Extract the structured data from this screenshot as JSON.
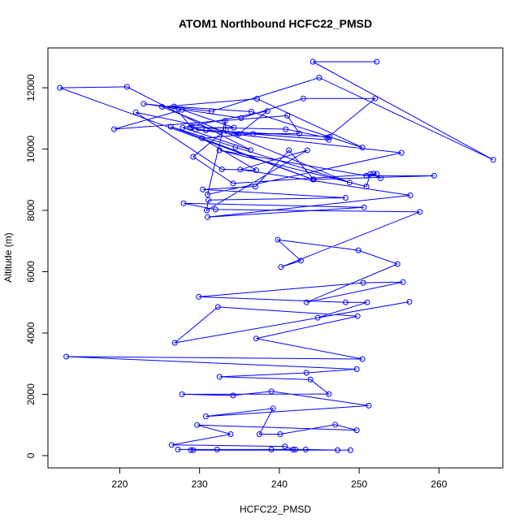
{
  "chart_data": {
    "type": "scatter",
    "title": "ATOM1 Northbound HCFC22_PMSD",
    "xlabel": "HCFC22_PMSD",
    "ylabel": "Altitude (m)",
    "xlim": [
      211,
      268
    ],
    "ylim": [
      -400,
      13300
    ],
    "xticks": [
      220,
      230,
      240,
      250,
      260
    ],
    "yticks": [
      0,
      2000,
      4000,
      6000,
      8000,
      10000,
      12000
    ],
    "grid": false,
    "legend": "none",
    "line_color": "#0000ff",
    "marker": "open-circle",
    "series": [
      {
        "x": [
          252.2,
          244.2,
          266.8,
          245.0,
          231.5,
          223.0,
          235.2,
          243.0,
          252.0,
          246.0,
          240.8,
          229.0,
          226.8,
          236.5,
          250.4,
          237.2,
          225.3,
          248.8,
          234.5,
          226.4,
          244.2,
          212.5,
          220.9,
          236.4,
          227.9,
          238.5,
          234.9,
          222.0,
          232.8,
          237.1,
          230.3,
          236.7,
          242.5,
          241.0,
          219.3,
          227.8,
          234.3,
          228.8,
          230.8,
          246.2,
          246.3,
          229.5,
          255.3,
          231.0,
          233.2,
          233.3,
          229.2,
          234.2,
          252.2,
          251.8,
          252.7,
          251.4,
          250.9,
          232.5,
          250.9,
          259.4,
          244.3,
          241.2,
          237.0,
          230.4,
          248.3,
          231.1,
          230.9,
          243.5,
          235.1,
          256.4,
          231.0,
          250.6,
          228.0,
          232.0,
          257.6,
          240.2,
          242.7,
          239.8,
          249.9,
          254.8,
          243.4,
          255.5,
          250.5,
          229.9,
          248.3,
          251.0,
          244.8,
          256.3,
          226.9,
          232.3,
          249.8,
          237.1,
          250.4,
          213.3,
          249.7,
          243.4,
          232.5,
          243.9,
          246.2,
          227.8,
          234.2,
          239.0,
          251.2,
          230.8,
          239.2,
          237.5,
          240.1,
          247.0,
          249.7,
          229.7,
          233.9,
          226.5,
          240.7,
          241.7,
          228.9,
          232.2,
          248.9,
          229.2,
          247.3,
          243.3,
          242.0,
          227.3,
          239.0
        ],
        "y": [
          12850,
          12850,
          9650,
          12330,
          11230,
          11480,
          11010,
          11650,
          11650,
          10370,
          10650,
          10710,
          11390,
          11220,
          10050,
          11640,
          11380,
          8910,
          10060,
          10730,
          9010,
          12000,
          12030,
          9970,
          10700,
          11240,
          10490,
          11200,
          9340,
          9310,
          10350,
          10500,
          10510,
          11090,
          10650,
          11280,
          10700,
          10700,
          10610,
          10300,
          10400,
          10630,
          9880,
          8520,
          10920,
          10630,
          9750,
          8880,
          9190,
          9200,
          9050,
          9190,
          8780,
          9960,
          9130,
          9130,
          9010,
          9960,
          8780,
          8680,
          8410,
          8340,
          8000,
          9960,
          9330,
          8490,
          7780,
          8100,
          8230,
          8030,
          7950,
          6150,
          6360,
          7040,
          6700,
          6250,
          5000,
          5660,
          5640,
          5180,
          5000,
          5000,
          4500,
          5020,
          3680,
          4850,
          4550,
          3820,
          3150,
          3230,
          2820,
          2700,
          2570,
          2480,
          2010,
          2000,
          1960,
          2100,
          1630,
          1280,
          1540,
          700,
          700,
          1010,
          830,
          1000,
          700,
          350,
          300,
          200,
          180,
          200,
          180,
          180,
          180,
          200,
          200,
          200,
          200
        ]
      }
    ]
  }
}
